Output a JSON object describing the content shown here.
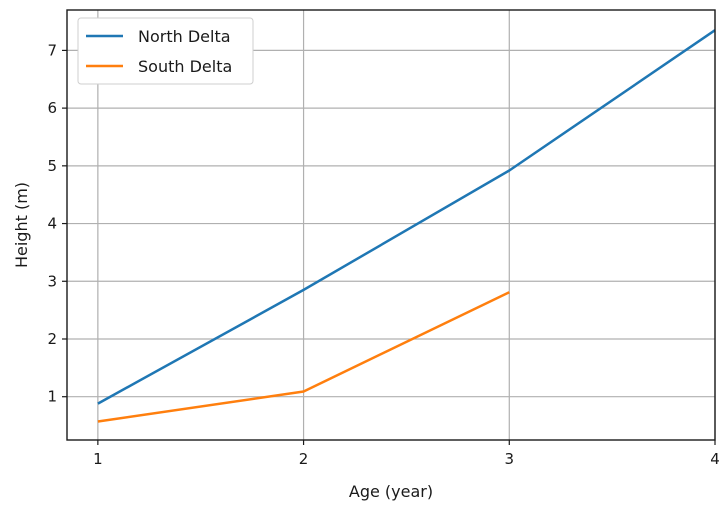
{
  "chart_data": {
    "type": "line",
    "xlabel": "Age (year)",
    "ylabel": "Height (m)",
    "x_ticks": [
      1,
      2,
      3,
      4
    ],
    "y_ticks": [
      1,
      2,
      3,
      4,
      5,
      6,
      7
    ],
    "xlim": [
      0.85,
      4.0
    ],
    "ylim": [
      0.25,
      7.7
    ],
    "grid": true,
    "legend_position": "top-left",
    "series": [
      {
        "name": "North Delta",
        "color": "#1f77b4",
        "x": [
          1,
          2,
          3,
          4
        ],
        "y": [
          0.88,
          2.85,
          4.92,
          7.35
        ]
      },
      {
        "name": "South Delta",
        "color": "#ff7f0e",
        "x": [
          1,
          2,
          3
        ],
        "y": [
          0.57,
          1.09,
          2.81
        ]
      }
    ]
  }
}
